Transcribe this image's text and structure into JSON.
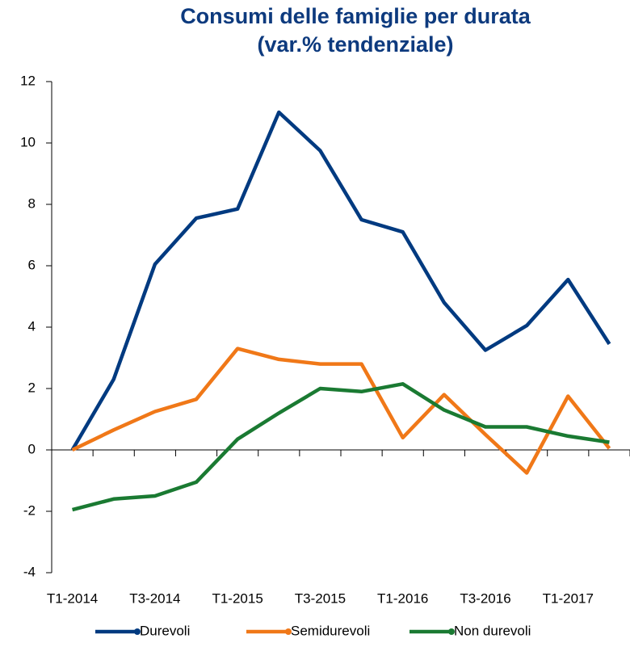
{
  "chart_data": {
    "type": "line",
    "title": "Consumi delle famiglie per durata",
    "subtitle": "(var.% tendenziale)",
    "categories": [
      "T1-2014",
      null,
      "T3-2014",
      null,
      "T1-2015",
      null,
      "T3-2015",
      null,
      "T1-2016",
      null,
      "T3-2016",
      null,
      "T1-2017",
      null
    ],
    "series": [
      {
        "name": "Durevoli",
        "color": "#003a80",
        "values": [
          0,
          2.3,
          6.05,
          7.55,
          7.85,
          11,
          9.75,
          7.5,
          7.1,
          4.8,
          3.25,
          4.05,
          5.55,
          3.45
        ]
      },
      {
        "name": "Semidurevoli",
        "color": "#f07818",
        "values": [
          0,
          0.65,
          1.25,
          1.65,
          3.3,
          2.95,
          2.8,
          2.8,
          0.4,
          1.8,
          0.5,
          -0.75,
          1.75,
          0.05
        ]
      },
      {
        "name": "Non durevoli",
        "color": "#1a7a32",
        "values": [
          -1.95,
          -1.6,
          -1.5,
          -1.05,
          0.35,
          1.2,
          2.0,
          1.9,
          2.15,
          1.3,
          0.75,
          0.75,
          0.45,
          0.25
        ]
      }
    ],
    "ylim": [
      -4,
      12
    ],
    "yticks": [
      -4,
      -2,
      0,
      2,
      4,
      6,
      8,
      10,
      12
    ],
    "grid": false
  }
}
